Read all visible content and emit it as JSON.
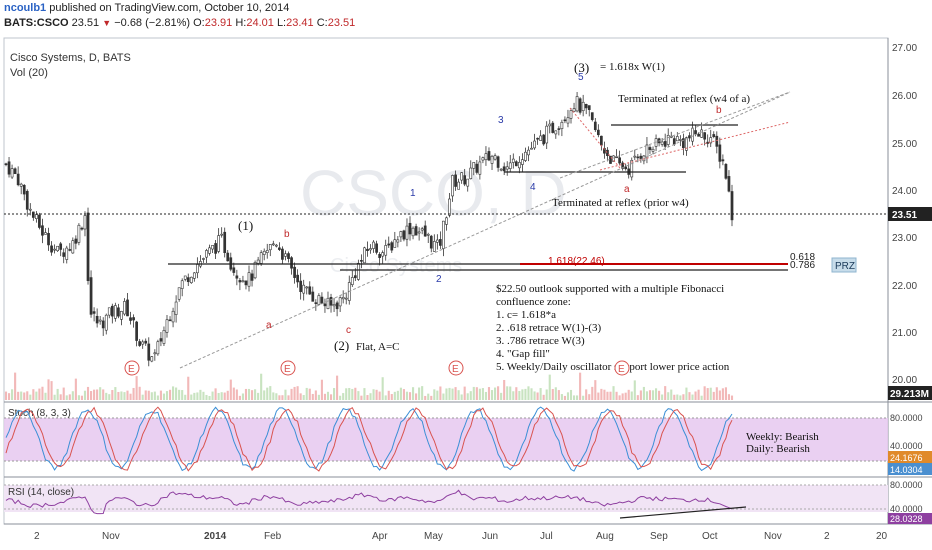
{
  "header": {
    "author": "ncoulb1",
    "published_text": "published on TradingView.com, October 10, 2014",
    "symbol": "BATS:CSCO",
    "last": "23.51",
    "change": "−0.68 (−2.81%)",
    "open_label": "O:",
    "open": "23.91",
    "high_label": "H:",
    "high": "24.01",
    "low_label": "L:",
    "low": "23.41",
    "close_label": "C:",
    "close": "23.51"
  },
  "pane_labels": {
    "title": "Cisco Systems, D, BATS",
    "volume": "Vol (20)",
    "stoch": "Stoch (8, 3, 3)",
    "rsi": "RSI (14, close)"
  },
  "watermark": {
    "ticker": "CSCO, D",
    "name": "Cisco Systems"
  },
  "axis": {
    "price_ticks": [
      "27.00",
      "26.00",
      "25.00",
      "24.00",
      "23.00",
      "22.00",
      "21.00",
      "20.00"
    ],
    "current_price_badge": "23.51",
    "volume_badge": "29.213M",
    "stoch_ticks": [
      "80.0000",
      "40.0000"
    ],
    "stoch_badges": [
      "24.1676",
      "14.0304"
    ],
    "rsi_ticks": [
      "80.0000",
      "40.0000"
    ],
    "rsi_badge": "28.0328",
    "x_ticks": [
      "2",
      "Nov",
      "2014",
      "Feb",
      "Apr",
      "May",
      "Jun",
      "Jul",
      "Aug",
      "Sep",
      "Oct",
      "Nov",
      "2",
      "20"
    ]
  },
  "annotations": {
    "wave1_major": "(1)",
    "wave2_major": "(2)",
    "flat_note": "Flat, A=C",
    "wave3_major": "(3)",
    "fib_note": "= 1.618x W(1)",
    "sub1": "1",
    "sub2": "2",
    "sub3": "3",
    "sub4": "4",
    "sub5": "5",
    "a1": "a",
    "b1": "b",
    "c1": "c",
    "a2": "a",
    "b2": "b",
    "reflex1": "Terminated at reflex (w4 of a)",
    "reflex2": "Terminated at reflex (prior w4)",
    "fib_level": "1.618(22.46)",
    "lvl618": "0.618",
    "lvl786": "0.786",
    "prz": "PRZ",
    "outlook_lines": [
      "$22.50 outlook supported with a multiple Fibonacci",
      "confluence zone:",
      "1. c= 1.618*a",
      "2. .618 retrace W(1)-(3)",
      "3. .786 retrace W(3)",
      "4. \"Gap fill\"",
      "5. Weekly/Daily oscillator support lower price action"
    ],
    "stoch_weekly": "Weekly: Bearish",
    "stoch_daily": "Daily: Bearish",
    "earnings_marker": "E"
  },
  "colors": {
    "up": "#ffffff",
    "down": "#333333",
    "fib_red": "#c00000",
    "stoch_fill": "#e6c8f0",
    "rsi_fill": "#f1e4f5",
    "blue_label": "#2a3aa8",
    "red_label": "#c0292b",
    "badge_bg": "#222222",
    "stoch_k": "#3b8fd6",
    "stoch_d": "#d9534f",
    "rsi_line": "#8e3fa0",
    "prz_bg": "#c7dcea",
    "price_down_arrow": "#c0292b"
  },
  "chart_data": {
    "type": "line",
    "description_fields": "approximate daily close path of CSCO (BATS), Oct 2013 – Oct 2014",
    "x": [
      "2013-10-01",
      "2013-10-07",
      "2013-10-14",
      "2013-10-21",
      "2013-10-28",
      "2013-11-04",
      "2013-11-11",
      "2013-11-13",
      "2013-11-18",
      "2013-11-25",
      "2013-12-02",
      "2013-12-09",
      "2013-12-16",
      "2013-12-23",
      "2013-12-30",
      "2014-01-06",
      "2014-01-13",
      "2014-01-20",
      "2014-01-27",
      "2014-02-03",
      "2014-02-10",
      "2014-02-17",
      "2014-02-24",
      "2014-03-03",
      "2014-03-10",
      "2014-03-17",
      "2014-03-24",
      "2014-03-31",
      "2014-04-07",
      "2014-04-14",
      "2014-04-21",
      "2014-04-28",
      "2014-05-05",
      "2014-05-12",
      "2014-05-19",
      "2014-05-26",
      "2014-06-02",
      "2014-06-09",
      "2014-06-16",
      "2014-06-23",
      "2014-06-30",
      "2014-07-07",
      "2014-07-14",
      "2014-07-21",
      "2014-07-28",
      "2014-08-04",
      "2014-08-11",
      "2014-08-18",
      "2014-08-25",
      "2014-09-01",
      "2014-09-08",
      "2014-09-15",
      "2014-09-22",
      "2014-09-29",
      "2014-10-06",
      "2014-10-10"
    ],
    "close": [
      24.6,
      24.3,
      23.5,
      23.0,
      22.6,
      22.8,
      23.5,
      21.3,
      21.0,
      21.3,
      21.4,
      20.6,
      20.2,
      21.1,
      21.9,
      22.3,
      22.6,
      22.9,
      22.2,
      22.0,
      22.5,
      22.9,
      22.3,
      21.8,
      21.6,
      21.4,
      21.6,
      22.3,
      22.8,
      22.6,
      23.0,
      23.2,
      23.0,
      22.7,
      24.2,
      24.3,
      24.6,
      24.8,
      24.5,
      24.8,
      25.0,
      25.3,
      25.6,
      26.0,
      25.7,
      25.0,
      24.6,
      24.5,
      24.9,
      25.0,
      25.2,
      25.1,
      25.3,
      25.2,
      24.6,
      23.51
    ],
    "ylim": [
      19.7,
      27.2
    ],
    "fib_levels": [
      {
        "label": "1.618(22.46)",
        "value": 22.46
      },
      {
        "label": "0.618",
        "value": 22.45
      },
      {
        "label": "0.786",
        "value": 22.33
      }
    ],
    "horizontal_lines": [
      22.44,
      22.33,
      24.42,
      25.38
    ],
    "current_price": 23.51,
    "oscillators": {
      "stoch": {
        "params": "8, 3, 3",
        "last_k": 24.1676,
        "last_d": 14.0304,
        "bands": [
          80,
          40
        ]
      },
      "rsi": {
        "params": "14, close",
        "last": 28.0328,
        "bands": [
          80,
          40
        ]
      }
    },
    "volume_last": "29.213M"
  }
}
